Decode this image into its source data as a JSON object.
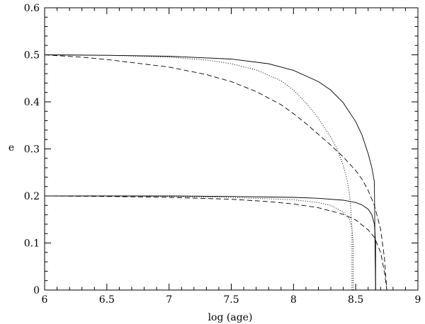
{
  "chart_data": {
    "type": "line",
    "xlabel": "log (age)",
    "ylabel": "e",
    "xlim": [
      6,
      9
    ],
    "ylim": [
      0,
      0.6
    ],
    "x_ticks": [
      6,
      6.5,
      7,
      7.5,
      8,
      8.5,
      9
    ],
    "x_tick_labels": [
      "6",
      "6.5",
      "7",
      "7.5",
      "8",
      "8.5",
      "9"
    ],
    "y_ticks": [
      0,
      0.1,
      0.2,
      0.3,
      0.4,
      0.5,
      0.6
    ],
    "y_tick_labels": [
      "0",
      "0.1",
      "0.2",
      "0.3",
      "0.4",
      "0.5",
      "0.6"
    ],
    "x_minor_step": 0.1,
    "y_minor_step": 0.02,
    "grid": false,
    "legend": "none",
    "series": [
      {
        "style": "solid",
        "x": [
          6.0,
          6.5,
          7.0,
          7.5,
          7.8,
          8.0,
          8.2,
          8.3,
          8.4,
          8.5,
          8.55,
          8.6,
          8.63,
          8.65,
          8.655,
          8.66
        ],
        "y": [
          0.5,
          0.499,
          0.497,
          0.491,
          0.481,
          0.467,
          0.443,
          0.425,
          0.398,
          0.358,
          0.33,
          0.29,
          0.26,
          0.23,
          0.1,
          0.0
        ]
      },
      {
        "style": "dotted",
        "x": [
          6.0,
          6.5,
          7.0,
          7.3,
          7.5,
          7.7,
          7.9,
          8.0,
          8.1,
          8.2,
          8.3,
          8.35,
          8.4,
          8.43,
          8.45,
          8.46,
          8.47,
          8.47
        ],
        "y": [
          0.5,
          0.499,
          0.495,
          0.489,
          0.481,
          0.468,
          0.445,
          0.425,
          0.398,
          0.365,
          0.325,
          0.3,
          0.265,
          0.235,
          0.205,
          0.175,
          0.13,
          0.0
        ]
      },
      {
        "style": "dashed",
        "x": [
          6.0,
          6.3,
          6.5,
          7.0,
          7.3,
          7.5,
          7.7,
          7.9,
          8.0,
          8.1,
          8.2,
          8.3,
          8.4,
          8.5,
          8.55,
          8.6,
          8.65,
          8.7,
          8.73,
          8.75
        ],
        "y": [
          0.5,
          0.495,
          0.49,
          0.474,
          0.458,
          0.443,
          0.422,
          0.394,
          0.375,
          0.354,
          0.331,
          0.308,
          0.283,
          0.254,
          0.236,
          0.212,
          0.18,
          0.13,
          0.07,
          0.0
        ]
      },
      {
        "style": "solid",
        "x": [
          6.0,
          6.5,
          7.0,
          7.5,
          8.0,
          8.2,
          8.4,
          8.5,
          8.55,
          8.6,
          8.63,
          8.65,
          8.66,
          8.66
        ],
        "y": [
          0.2,
          0.2,
          0.2,
          0.199,
          0.197,
          0.195,
          0.191,
          0.186,
          0.181,
          0.172,
          0.16,
          0.14,
          0.1,
          0.0
        ]
      },
      {
        "style": "dotted",
        "x": [
          6.0,
          6.5,
          7.0,
          7.5,
          8.0,
          8.2,
          8.3,
          8.4,
          8.45,
          8.47,
          8.48,
          8.48
        ],
        "y": [
          0.2,
          0.2,
          0.199,
          0.197,
          0.192,
          0.186,
          0.18,
          0.166,
          0.15,
          0.13,
          0.1,
          0.0
        ]
      },
      {
        "style": "dashed",
        "x": [
          6.0,
          6.5,
          7.0,
          7.5,
          7.8,
          8.0,
          8.2,
          8.4,
          8.5,
          8.6,
          8.65,
          8.7,
          8.73,
          8.75
        ],
        "y": [
          0.2,
          0.199,
          0.197,
          0.193,
          0.188,
          0.183,
          0.175,
          0.161,
          0.149,
          0.128,
          0.112,
          0.08,
          0.04,
          0.0
        ]
      },
      {
        "style": "solid",
        "x": [
          8.66,
          9.0
        ],
        "y": [
          0.0,
          0.0
        ]
      }
    ]
  }
}
